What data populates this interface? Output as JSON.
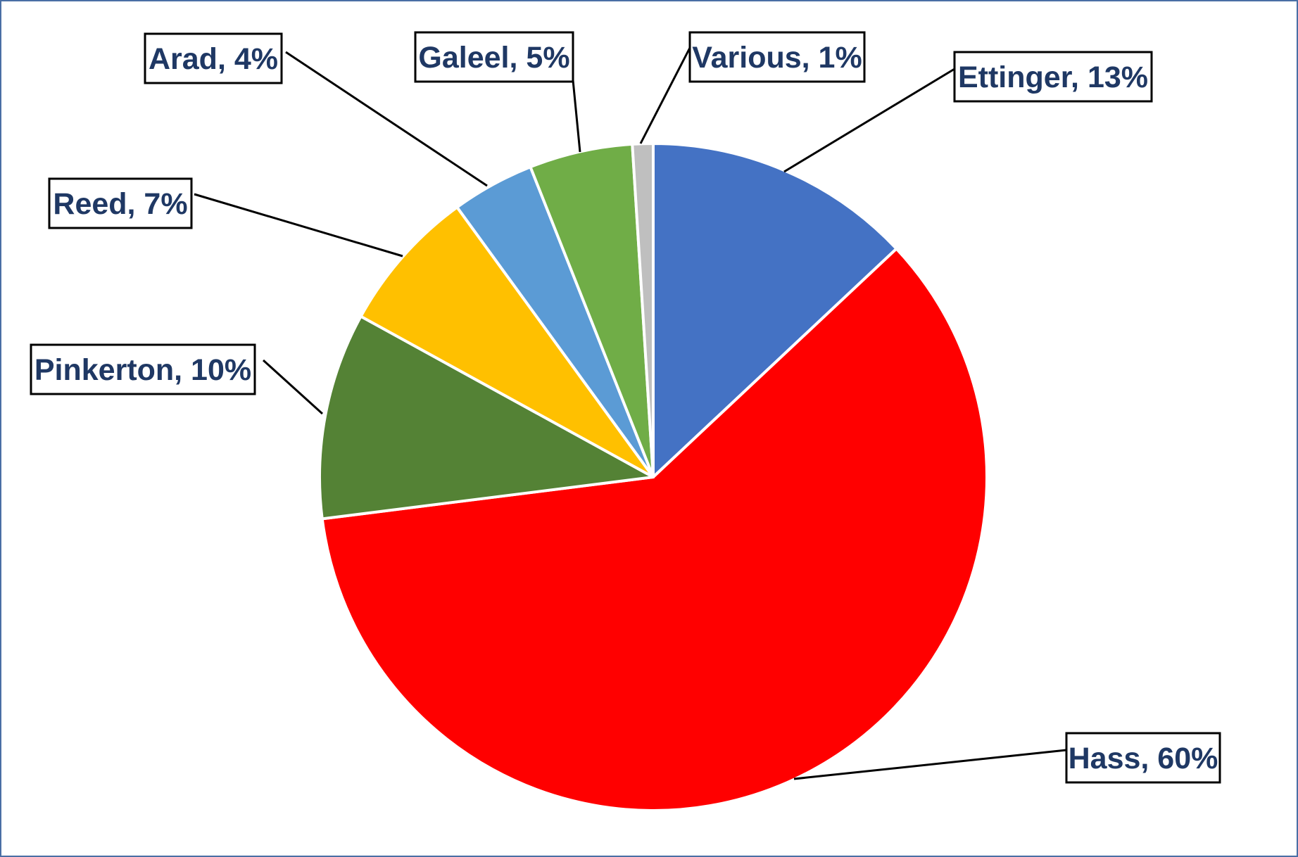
{
  "chart_data": {
    "type": "pie",
    "title": "",
    "start_angle_deg": 0,
    "direction": "clockwise",
    "slices": [
      {
        "name": "Ettinger",
        "value": 13,
        "label": "Ettinger, 13%",
        "color": "#4472C4"
      },
      {
        "name": "Hass",
        "value": 60,
        "label": "Hass, 60%",
        "color": "#FF0000"
      },
      {
        "name": "Pinkerton",
        "value": 10,
        "label": "Pinkerton, 10%",
        "color": "#548235"
      },
      {
        "name": "Reed",
        "value": 7,
        "label": "Reed, 7%",
        "color": "#FFC000"
      },
      {
        "name": "Arad",
        "value": 4,
        "label": "Arad, 4%",
        "color": "#5B9BD5"
      },
      {
        "name": "Galeel",
        "value": 5,
        "label": "Galeel, 5%",
        "color": "#70AD47"
      },
      {
        "name": "Various",
        "value": 1,
        "label": "Various, 1%",
        "color": "#BFBFBF"
      }
    ],
    "label_text_color": "#1F3864",
    "legend": "none"
  }
}
